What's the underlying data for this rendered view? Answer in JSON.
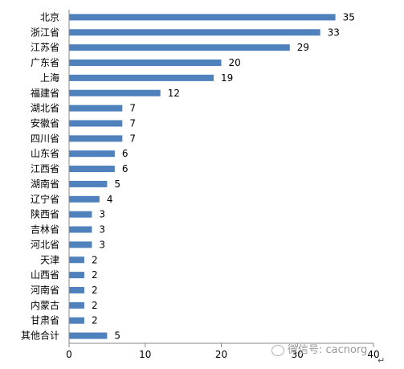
{
  "chart_data": {
    "type": "bar",
    "orientation": "horizontal",
    "categories": [
      "北京",
      "浙江省",
      "江苏省",
      "广东省",
      "上海",
      "福建省",
      "湖北省",
      "安徽省",
      "四川省",
      "山东省",
      "江西省",
      "湖南省",
      "辽宁省",
      "陕西省",
      "吉林省",
      "河北省",
      "天津",
      "山西省",
      "河南省",
      "内蒙古",
      "甘肃省",
      "其他合计"
    ],
    "values": [
      35,
      33,
      29,
      20,
      19,
      12,
      7,
      7,
      7,
      6,
      6,
      5,
      4,
      3,
      3,
      3,
      2,
      2,
      2,
      2,
      2,
      5
    ],
    "xlim": [
      0,
      40
    ],
    "xticks": [
      0,
      10,
      20,
      30,
      40
    ],
    "bar_color": "#4f81bd",
    "grid": false
  },
  "watermark": "微信号: cacnorg",
  "return_mark": "↵"
}
